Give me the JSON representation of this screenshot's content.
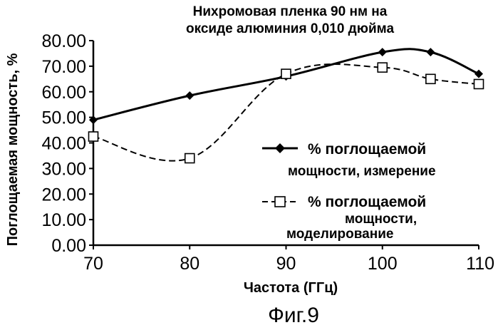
{
  "chart_data": {
    "type": "line",
    "title_lines": [
      "Нихромовая пленка 90 нм на",
      "оксиде алюминия 0,010 дюйма"
    ],
    "xlabel": "Частота (ГГц)",
    "ylabel": "Поглощаемая мощность, %",
    "xlim": [
      70,
      110
    ],
    "ylim": [
      0,
      80
    ],
    "x_ticks": [
      "70",
      "80",
      "90",
      "100",
      "110"
    ],
    "y_ticks": [
      "0.00",
      "10.00",
      "20.00",
      "30.00",
      "40.00",
      "50.00",
      "60.00",
      "70.00",
      "80.00"
    ],
    "grid": false,
    "legend_position": "right",
    "series": [
      {
        "name_lines": [
          "% поглощаемой",
          "мощности, измерение"
        ],
        "marker": "filled-diamond",
        "line_style": "solid",
        "color": "#000000",
        "points": [
          [
            70,
            49
          ],
          [
            80,
            58.5
          ],
          [
            90,
            66
          ],
          [
            100,
            75.5
          ],
          [
            105,
            75.5
          ],
          [
            110,
            67
          ]
        ]
      },
      {
        "name_lines": [
          "% поглощаемой",
          "мощности,",
          "моделирование"
        ],
        "marker": "open-square",
        "line_style": "dashed",
        "color": "#000000",
        "points": [
          [
            70,
            42.5
          ],
          [
            80,
            34
          ],
          [
            90,
            67
          ],
          [
            100,
            69.5
          ],
          [
            105,
            65
          ],
          [
            110,
            63
          ]
        ]
      }
    ]
  },
  "caption": "Фиг.9"
}
